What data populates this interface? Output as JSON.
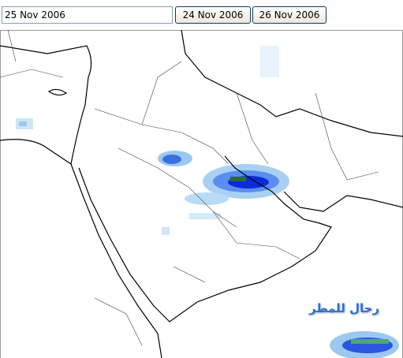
{
  "toolbar": {
    "date_input": "25 Nov 2006",
    "prev_button": "24 Nov 2006",
    "next_button": "26 Nov 2006"
  },
  "map": {
    "watermark": "رحال للمطر"
  }
}
